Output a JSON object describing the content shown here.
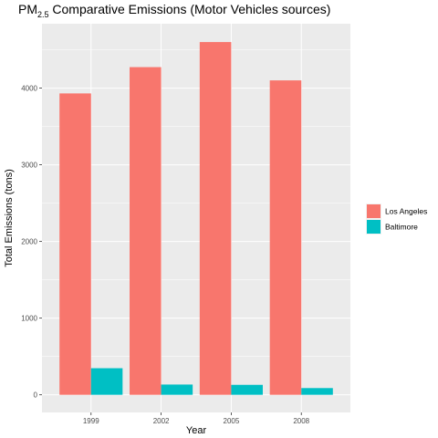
{
  "chart_data": {
    "type": "bar",
    "title_main": "PM",
    "title_sub": "2.5",
    "title_rest": " Comparative Emissions (Motor Vehicles sources)",
    "xlabel": "Year",
    "ylabel": "Total Emissions (tons)",
    "categories": [
      "1999",
      "2002",
      "2005",
      "2008"
    ],
    "series": [
      {
        "name": "Los Angeles",
        "color": "#F8766D",
        "values": [
          3931,
          4274,
          4601,
          4101
        ]
      },
      {
        "name": "Baltimore",
        "color": "#00BFC4",
        "values": [
          347,
          134,
          130,
          88
        ]
      }
    ],
    "ylim": [
      -230,
      4840
    ],
    "yticks": [
      0,
      1000,
      2000,
      3000,
      4000
    ],
    "legend_position": "right",
    "grid": true,
    "panel_background": "#EBEBEB"
  }
}
